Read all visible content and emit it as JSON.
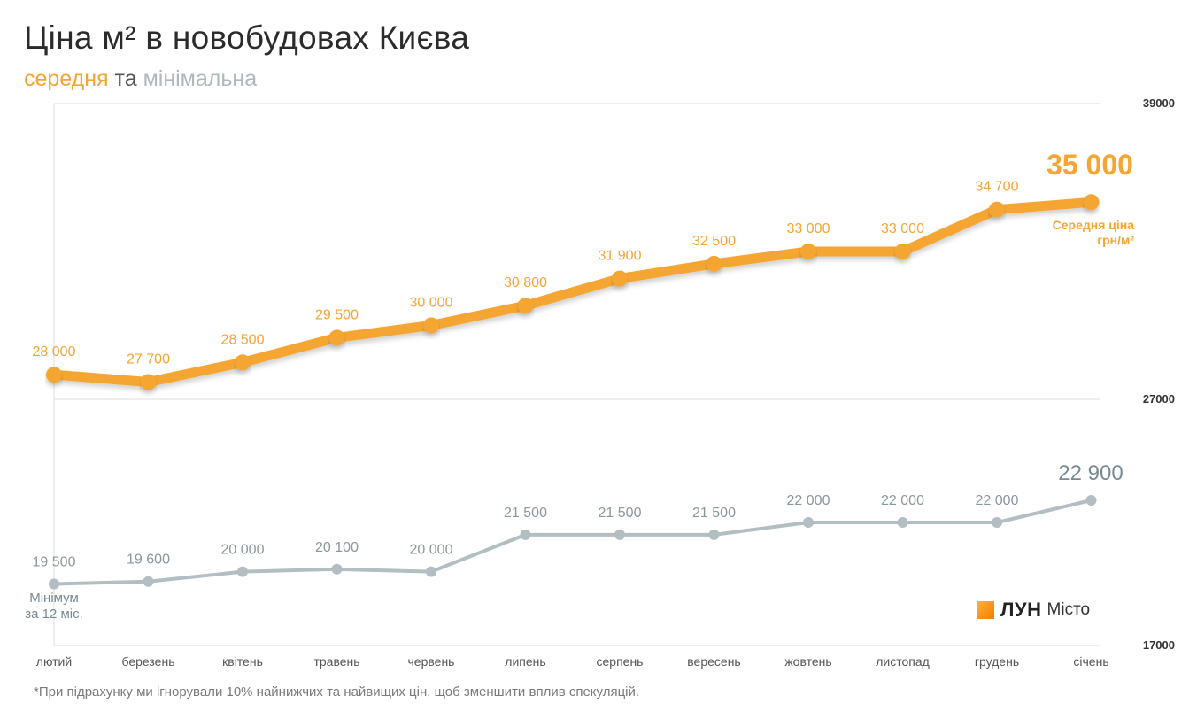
{
  "title": "Ціна м² в новобудовах Києва",
  "subtitle": {
    "average": "середня",
    "connector": "та",
    "minimum": "мінімальна"
  },
  "footnote": "*При підрахунку ми ігнорували 10% найнижчих та найвищих цін, щоб зменшити вплив спекуляцій.",
  "brand": {
    "name": "ЛУН",
    "sub": "Місто"
  },
  "annotations": {
    "average_last": "Середня ціна\nгрн/м²",
    "minimum_first": "Мінімум\nза 12 міс."
  },
  "colors": {
    "average": "#f5a533",
    "minimum": "#b3bec3",
    "grid": "#dddddd"
  },
  "chart_data": {
    "type": "line",
    "categories": [
      "лютий",
      "березень",
      "квітень",
      "травень",
      "червень",
      "липень",
      "серпень",
      "вересень",
      "жовтень",
      "листопад",
      "грудень",
      "січень"
    ],
    "y_ticks": [
      "39000",
      "27000",
      "17000"
    ],
    "series": [
      {
        "name": "середня",
        "values": [
          28000,
          27700,
          28500,
          29500,
          30000,
          30800,
          31900,
          32500,
          33000,
          33000,
          34700,
          35000
        ],
        "labels": [
          "28 000",
          "27 700",
          "28 500",
          "29 500",
          "30 000",
          "30 800",
          "31 900",
          "32 500",
          "33 000",
          "33 000",
          "34 700",
          "35 000"
        ]
      },
      {
        "name": "мінімальна",
        "values": [
          19500,
          19600,
          20000,
          20100,
          20000,
          21500,
          21500,
          21500,
          22000,
          22000,
          22000,
          22900
        ],
        "labels": [
          "19 500",
          "19 600",
          "20 000",
          "20 100",
          "20 000",
          "21 500",
          "21 500",
          "21 500",
          "22 000",
          "22 000",
          "22 000",
          "22 900"
        ]
      }
    ],
    "grid": true
  }
}
